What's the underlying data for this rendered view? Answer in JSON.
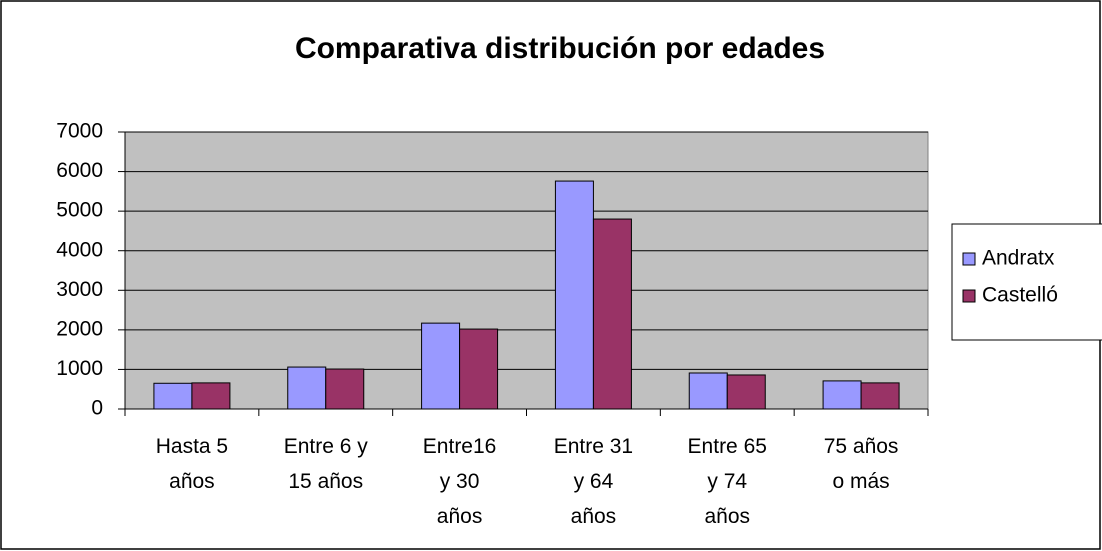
{
  "chart_data": {
    "type": "bar",
    "title": "Comparativa distribución por edades",
    "categories": [
      "Hasta 5 años",
      "Entre 6 y 15 años",
      "Entre16 y 30 años",
      "Entre 31 y 64 años",
      "Entre 65 y 74 años",
      "75 años o más"
    ],
    "series": [
      {
        "name": "Andratx",
        "color": "#9999ff",
        "values": [
          650,
          1060,
          2170,
          5760,
          910,
          710
        ]
      },
      {
        "name": "Castelló",
        "color": "#993366",
        "values": [
          660,
          1010,
          2020,
          4800,
          860,
          660
        ]
      }
    ],
    "ylim": [
      0,
      7000
    ],
    "yticks": [
      0,
      1000,
      2000,
      3000,
      4000,
      5000,
      6000,
      7000
    ],
    "grid": true,
    "legend": "right"
  }
}
